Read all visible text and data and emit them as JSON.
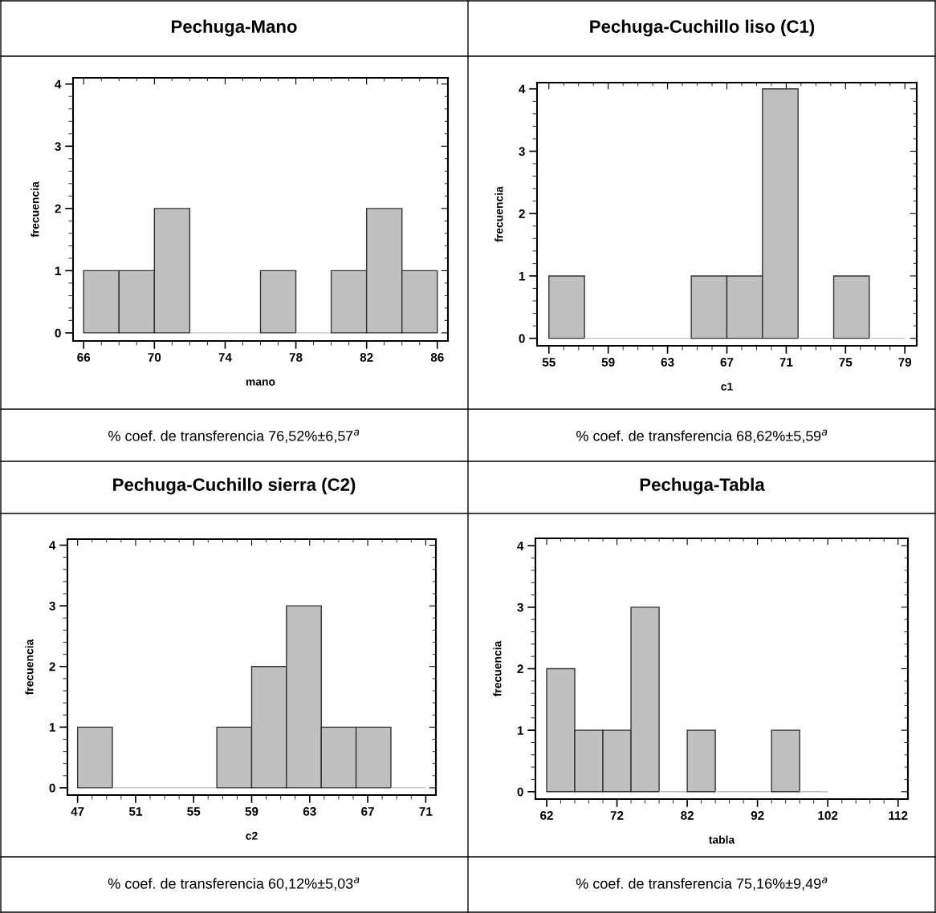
{
  "chart_data": [
    {
      "type": "histogram",
      "title": "Pechuga-Mano",
      "xlabel": "mano",
      "ylabel": "frecuencia",
      "bins": [
        66,
        68,
        70,
        72,
        74,
        76,
        78,
        80,
        82,
        84,
        86
      ],
      "values": [
        1,
        1,
        2,
        0,
        0,
        1,
        0,
        1,
        2,
        1
      ],
      "color": "#c0c0c0",
      "xlim": [
        65.4,
        86.6
      ],
      "xticks": [
        66,
        70,
        74,
        78,
        82,
        86
      ],
      "ylim": [
        -0.13,
        4.1
      ],
      "yticks": [
        0,
        1,
        2,
        3,
        4
      ],
      "annotations": [
        "% coef. de transferencia 76,52%±6,57$^{a}$"
      ]
    },
    {
      "type": "histogram",
      "title": "Pechuga-Cuchillo liso (C1)",
      "xlabel": "c1",
      "ylabel": "frecuencia",
      "bins": [
        55,
        57.4,
        59.8,
        62.2,
        64.6,
        67,
        69.4,
        71.8,
        74.2,
        76.6,
        79
      ],
      "values": [
        1,
        0,
        0,
        0,
        1,
        1,
        4,
        0,
        1,
        0
      ],
      "color": "#c0c0c0",
      "xlim": [
        54.2,
        79.8
      ],
      "xticks": [
        55,
        59,
        63,
        67,
        71,
        75,
        79
      ],
      "ylim": [
        -0.12,
        4.1
      ],
      "yticks": [
        0,
        1,
        2,
        3,
        4
      ],
      "annotations": [
        "% coef. de transferencia 68,62%±5,59$^{a}$"
      ]
    },
    {
      "type": "histogram",
      "title": "Pechuga-Cuchillo sierra (C2)",
      "xlabel": "c2",
      "ylabel": "frecuencia",
      "bins": [
        47,
        49.4,
        51.8,
        54.2,
        56.6,
        59,
        61.4,
        63.8,
        66.2,
        68.6,
        71
      ],
      "values": [
        1,
        0,
        0,
        0,
        1,
        2,
        3,
        1,
        1,
        0
      ],
      "color": "#c0c0c0",
      "xlim": [
        46.3,
        71.7
      ],
      "xticks": [
        47,
        51,
        55,
        59,
        63,
        67,
        71
      ],
      "ylim": [
        -0.12,
        4.1
      ],
      "yticks": [
        0,
        1,
        2,
        3,
        4
      ],
      "annotations": [
        "% coef. de transferencia 60,12%±5,03$^{a}$"
      ]
    },
    {
      "type": "histogram",
      "title": "Pechuga-Tabla",
      "xlabel": "tabla",
      "ylabel": "frecuencia",
      "bins": [
        62,
        66,
        70,
        74,
        78,
        82,
        86,
        90,
        94,
        98,
        102
      ],
      "values": [
        2,
        1,
        1,
        3,
        0,
        1,
        0,
        0,
        1,
        0
      ],
      "color": "#c0c0c0",
      "xlim": [
        60.4,
        113.4
      ],
      "xticks": [
        62,
        72,
        82,
        92,
        102,
        112
      ],
      "ylim": [
        -0.12,
        4.12
      ],
      "yticks": [
        0,
        1,
        2,
        3,
        4
      ],
      "annotations": [
        "% coef. de transferencia 75,16%±9,49$^{a}$"
      ]
    }
  ]
}
